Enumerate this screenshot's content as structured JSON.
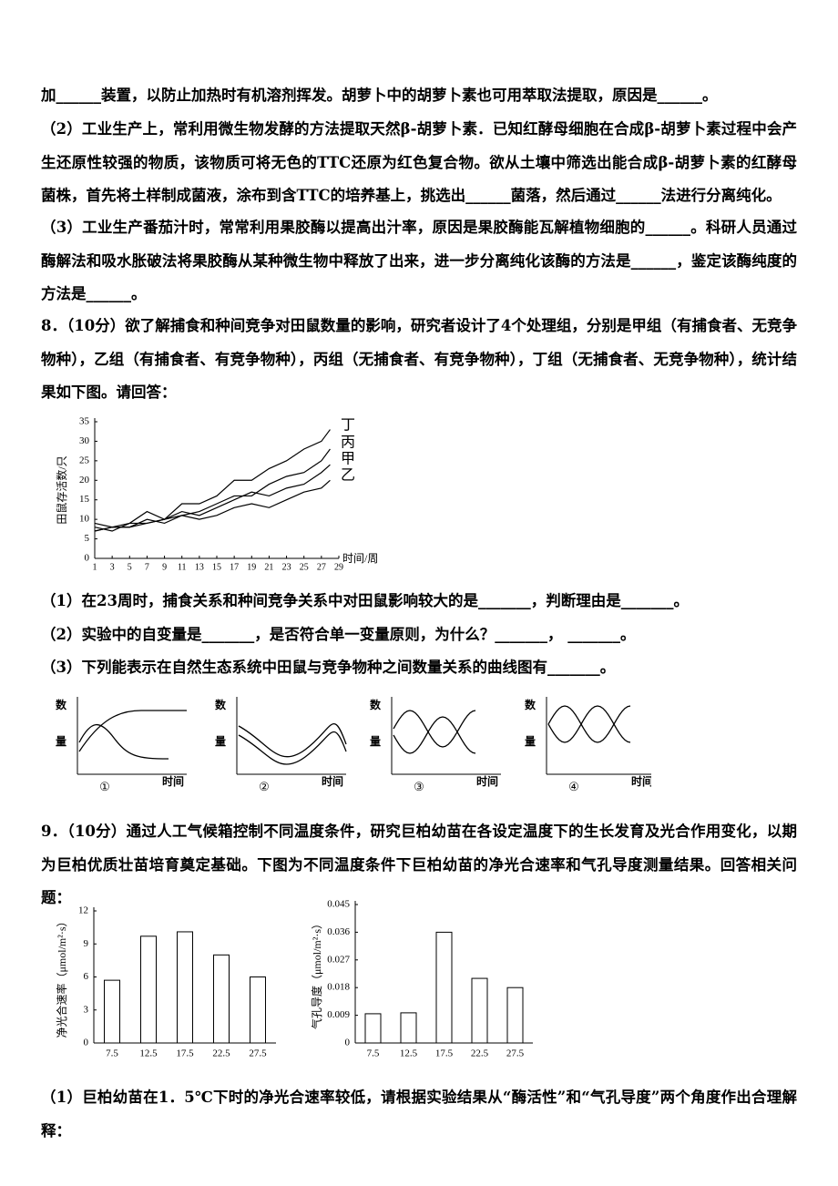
{
  "paragraphs": [
    "加______装置，以防止加热时有机溶剂挥发。胡萝卜中的胡萝卜素也可用萃取法提取，原因是______。",
    "（2）工业生产上，常利用微生物发酵的方法提取天然β-胡萝卜素．已知红酵母细胞在合成β-胡萝卜素过程中会产生还原性较强的物质，该物质可将无色的TTC还原为红色复合物。欲从土壤中筛选出能合成β-胡萝卜素的红酵母菌株，首先将土样制成菌液，涂布到含TTC的培养基上，挑选出______菌落，然后通过______法进行分离纯化。",
    "（3）工业生产番茄汁时，常常利用果胶酶以提高出汁率，原因是果胶酶能瓦解植物细胞的______。科研人员通过酶解法和吸水胀破法将果胶酶从某种微生物中释放了出来，进一步分离纯化该酶的方法是______，鉴定该酶纯度的方法是______。",
    "8．（10分）欲了解捕食和种间竞争对田鼠数量的影响，研究者设计了4个处理组，分别是甲组（有捕食者、无竞争物种），乙组（有捕食者、有竞争物种），丙组（无捕食者、有竞争物种），丁组（无捕食者、无竞争物种），统计结果如下图。请回答：",
    "（1）在23周时，捕食关系和种间竞争关系中对田鼠影响较大的是_______，判断理由是_______。",
    "（2）实验中的自变量是_______，是否符合单一变量原则，为什么？_______，  _______。",
    "（3）下列能表示在自然生态系统中田鼠与竞争物种之间数量关系的曲线图有_______。",
    "9．（10分）通过人工气候箱控制不同温度条件，研究巨柏幼苗在各设定温度下的生长发育及光合作用变化，以期为巨柏优质壮苗培育奠定基础。下图为不同温度条件下巨柏幼苗的净光合速率和气孔导度测量结果。回答相关问题：",
    "（1）巨柏幼苗在1．5℃下时的净光合速率较低，请根据实验结果从“酶活性”和“气孔导度”两个角度作出合理解释："
  ],
  "chart_data": [
    {
      "type": "line",
      "y_label": "田鼠存活数/只",
      "x_label": "时间/周",
      "x": [
        1,
        3,
        5,
        7,
        9,
        11,
        13,
        15,
        17,
        19,
        21,
        23,
        25,
        27,
        28
      ],
      "series": [
        {
          "name": "丁",
          "color": "#000000",
          "values": [
            8,
            7,
            9,
            12,
            10,
            14,
            14,
            16,
            20,
            20,
            23,
            25,
            28,
            30,
            33
          ]
        },
        {
          "name": "丙",
          "color": "#000000",
          "values": [
            7,
            8,
            8,
            10,
            9,
            11,
            12,
            14,
            16,
            16,
            19,
            21,
            22,
            25,
            28
          ]
        },
        {
          "name": "甲",
          "color": "#000000",
          "values": [
            7,
            8,
            9,
            9,
            10,
            12,
            11,
            13,
            15,
            17,
            16,
            18,
            19,
            22,
            24
          ]
        },
        {
          "name": "乙",
          "color": "#000000",
          "values": [
            9,
            8,
            8,
            9,
            10,
            11,
            10,
            11,
            13,
            14,
            13,
            15,
            17,
            18,
            20
          ]
        }
      ],
      "xlim": [
        1,
        29
      ],
      "xticks": [
        1,
        3,
        5,
        7,
        9,
        11,
        13,
        15,
        17,
        19,
        21,
        23,
        25,
        27,
        29
      ],
      "ylim": [
        0,
        35
      ],
      "yticks": [
        0,
        5,
        10,
        15,
        20,
        25,
        30,
        35
      ]
    },
    {
      "type": "bar",
      "y_label": "净光合速率（μmol/m²·s）",
      "categories": [
        "7.5",
        "12.5",
        "17.5",
        "22.5",
        "27.5"
      ],
      "values": [
        5.7,
        9.7,
        10.1,
        8,
        6
      ],
      "color": "#ffffff",
      "ylim": [
        0,
        12
      ],
      "yticks": [
        0,
        3,
        6,
        9,
        12
      ]
    },
    {
      "type": "bar",
      "y_label": "气孔导度（μmol/m²·s）",
      "categories": [
        "7.5",
        "12.5",
        "17.5",
        "22.5",
        "27.5"
      ],
      "values": [
        0.0095,
        0.0098,
        0.036,
        0.021,
        0.018
      ],
      "color": "#ffffff",
      "ylim": [
        0,
        0.045
      ],
      "yticks": [
        0,
        0.009,
        0.018,
        0.027,
        0.036,
        0.045
      ]
    }
  ],
  "sketches": [
    {
      "y_label_top": "数",
      "y_label_bottom": "量",
      "x_label": "时间",
      "caption": "①"
    },
    {
      "y_label_top": "数",
      "y_label_bottom": "量",
      "x_label": "时间",
      "caption": "②"
    },
    {
      "y_label_top": "数",
      "y_label_bottom": "量",
      "x_label": "时间",
      "caption": "③"
    },
    {
      "y_label_top": "数",
      "y_label_bottom": "量",
      "x_label": "时间",
      "caption": "④"
    }
  ]
}
